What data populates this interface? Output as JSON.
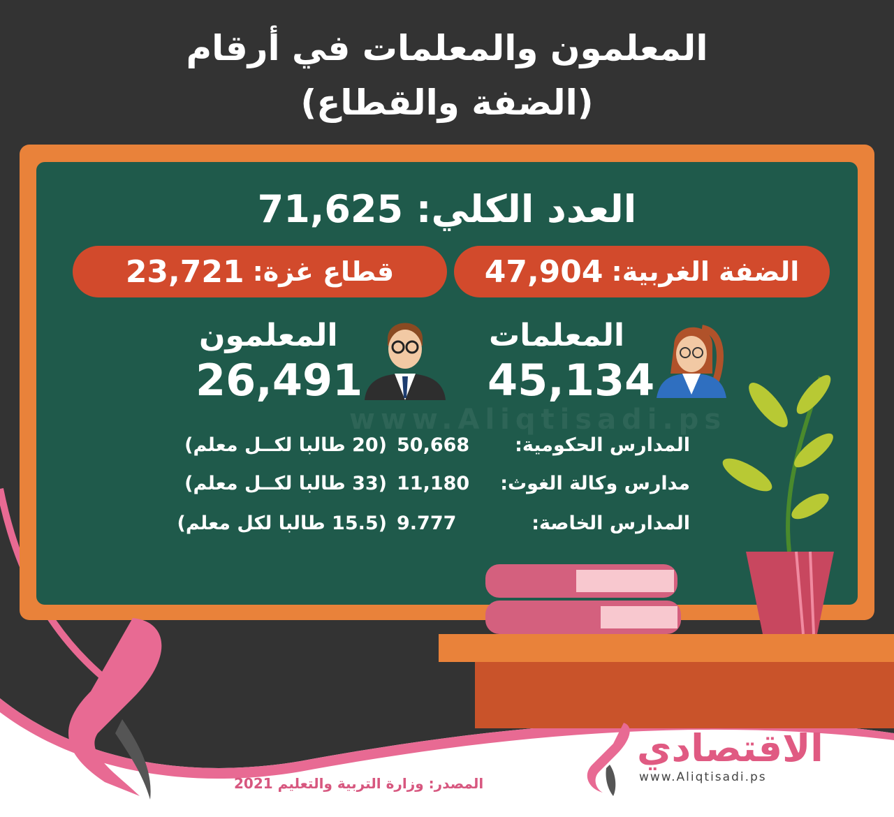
{
  "title": {
    "line1": "المعلمون والمعلمات في أرقام",
    "line2": "(الضفة والقطاع)"
  },
  "total": {
    "label": "العدد الكلي:",
    "value": "71,625"
  },
  "regions": [
    {
      "label": "الضفة الغربية:",
      "value": "47,904"
    },
    {
      "label": "قطاع غزة:",
      "value": "23,721"
    }
  ],
  "female": {
    "label": "المعلمات",
    "value": "45,134",
    "icon": "female-teacher-icon"
  },
  "male": {
    "label": "المعلمون",
    "value": "26,491",
    "icon": "male-teacher-icon"
  },
  "schools": [
    {
      "label": "المدارس الحكومية:",
      "value": "50,668",
      "note": "(20 طالبا لكــل معلم)"
    },
    {
      "label": "مدارس وكالة الغوث:",
      "value": "11,180",
      "note": "(33 طالبا لكــل معلم)"
    },
    {
      "label": "المدارس الخاصة:",
      "value": "9.777",
      "note": "(15.5 طالبا لكل معلم)"
    }
  ],
  "watermark": "www.Aliqtisadi.ps",
  "source": "المصدر:  وزارة التربية والتعليم 2021",
  "logo": {
    "name": "الاقتصادي",
    "url": "www.Aliqtisadi.ps"
  },
  "colors": {
    "dark": "#333333",
    "frame": "#e9823a",
    "board": "#1f5a4b",
    "pill": "#d24a2c",
    "pink": "#e05a82"
  }
}
